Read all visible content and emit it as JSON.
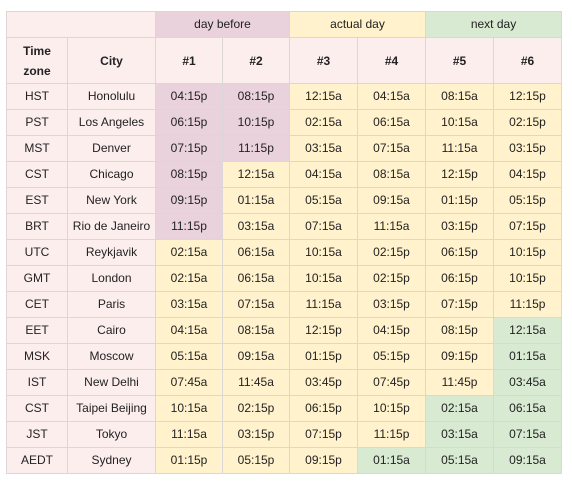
{
  "groups": [
    {
      "label": "day before",
      "span": 2,
      "cls": "g-before"
    },
    {
      "label": "actual day",
      "span": 2,
      "cls": "g-actual"
    },
    {
      "label": "next day",
      "span": 2,
      "cls": "g-next"
    }
  ],
  "headers": {
    "timezone_line1": "Time",
    "timezone_line2": "zone",
    "city": "City",
    "cols": [
      "#1",
      "#2",
      "#3",
      "#4",
      "#5",
      "#6"
    ]
  },
  "colors": {
    "day_before": "#ead2dc",
    "actual_day": "#fff2cc",
    "next_day": "#d9ead3",
    "header_bg": "#fdeeee"
  },
  "rows": [
    {
      "tz": "HST",
      "city": "Honolulu",
      "times": [
        "04:15p",
        "08:15p",
        "12:15a",
        "04:15a",
        "08:15a",
        "12:15p"
      ],
      "days": [
        "b",
        "b",
        "a",
        "a",
        "a",
        "a"
      ]
    },
    {
      "tz": "PST",
      "city": "Los Angeles",
      "times": [
        "06:15p",
        "10:15p",
        "02:15a",
        "06:15a",
        "10:15a",
        "02:15p"
      ],
      "days": [
        "b",
        "b",
        "a",
        "a",
        "a",
        "a"
      ]
    },
    {
      "tz": "MST",
      "city": "Denver",
      "times": [
        "07:15p",
        "11:15p",
        "03:15a",
        "07:15a",
        "11:15a",
        "03:15p"
      ],
      "days": [
        "b",
        "b",
        "a",
        "a",
        "a",
        "a"
      ]
    },
    {
      "tz": "CST",
      "city": "Chicago",
      "times": [
        "08:15p",
        "12:15a",
        "04:15a",
        "08:15a",
        "12:15p",
        "04:15p"
      ],
      "days": [
        "b",
        "a",
        "a",
        "a",
        "a",
        "a"
      ]
    },
    {
      "tz": "EST",
      "city": "New York",
      "times": [
        "09:15p",
        "01:15a",
        "05:15a",
        "09:15a",
        "01:15p",
        "05:15p"
      ],
      "days": [
        "b",
        "a",
        "a",
        "a",
        "a",
        "a"
      ]
    },
    {
      "tz": "BRT",
      "city": "Rio de Janeiro",
      "times": [
        "11:15p",
        "03:15a",
        "07:15a",
        "11:15a",
        "03:15p",
        "07:15p"
      ],
      "days": [
        "b",
        "a",
        "a",
        "a",
        "a",
        "a"
      ]
    },
    {
      "tz": "UTC",
      "city": "Reykjavik",
      "times": [
        "02:15a",
        "06:15a",
        "10:15a",
        "02:15p",
        "06:15p",
        "10:15p"
      ],
      "days": [
        "a",
        "a",
        "a",
        "a",
        "a",
        "a"
      ],
      "bold": true
    },
    {
      "tz": "GMT",
      "city": "London",
      "times": [
        "02:15a",
        "06:15a",
        "10:15a",
        "02:15p",
        "06:15p",
        "10:15p"
      ],
      "days": [
        "a",
        "a",
        "a",
        "a",
        "a",
        "a"
      ]
    },
    {
      "tz": "CET",
      "city": "Paris",
      "times": [
        "03:15a",
        "07:15a",
        "11:15a",
        "03:15p",
        "07:15p",
        "11:15p"
      ],
      "days": [
        "a",
        "a",
        "a",
        "a",
        "a",
        "a"
      ]
    },
    {
      "tz": "EET",
      "city": "Cairo",
      "times": [
        "04:15a",
        "08:15a",
        "12:15p",
        "04:15p",
        "08:15p",
        "12:15a"
      ],
      "days": [
        "a",
        "a",
        "a",
        "a",
        "a",
        "n"
      ]
    },
    {
      "tz": "MSK",
      "city": "Moscow",
      "times": [
        "05:15a",
        "09:15a",
        "01:15p",
        "05:15p",
        "09:15p",
        "01:15a"
      ],
      "days": [
        "a",
        "a",
        "a",
        "a",
        "a",
        "n"
      ]
    },
    {
      "tz": "IST",
      "city": "New Delhi",
      "times": [
        "07:45a",
        "11:45a",
        "03:45p",
        "07:45p",
        "11:45p",
        "03:45a"
      ],
      "days": [
        "a",
        "a",
        "a",
        "a",
        "a",
        "n"
      ]
    },
    {
      "tz": "CST",
      "city": "Taipei Beijing",
      "times": [
        "10:15a",
        "02:15p",
        "06:15p",
        "10:15p",
        "02:15a",
        "06:15a"
      ],
      "days": [
        "a",
        "a",
        "a",
        "a",
        "n",
        "n"
      ]
    },
    {
      "tz": "JST",
      "city": "Tokyo",
      "times": [
        "11:15a",
        "03:15p",
        "07:15p",
        "11:15p",
        "03:15a",
        "07:15a"
      ],
      "days": [
        "a",
        "a",
        "a",
        "a",
        "n",
        "n"
      ]
    },
    {
      "tz": "AEDT",
      "city": "Sydney",
      "times": [
        "01:15p",
        "05:15p",
        "09:15p",
        "01:15a",
        "05:15a",
        "09:15a"
      ],
      "days": [
        "a",
        "a",
        "a",
        "n",
        "n",
        "n"
      ]
    }
  ]
}
